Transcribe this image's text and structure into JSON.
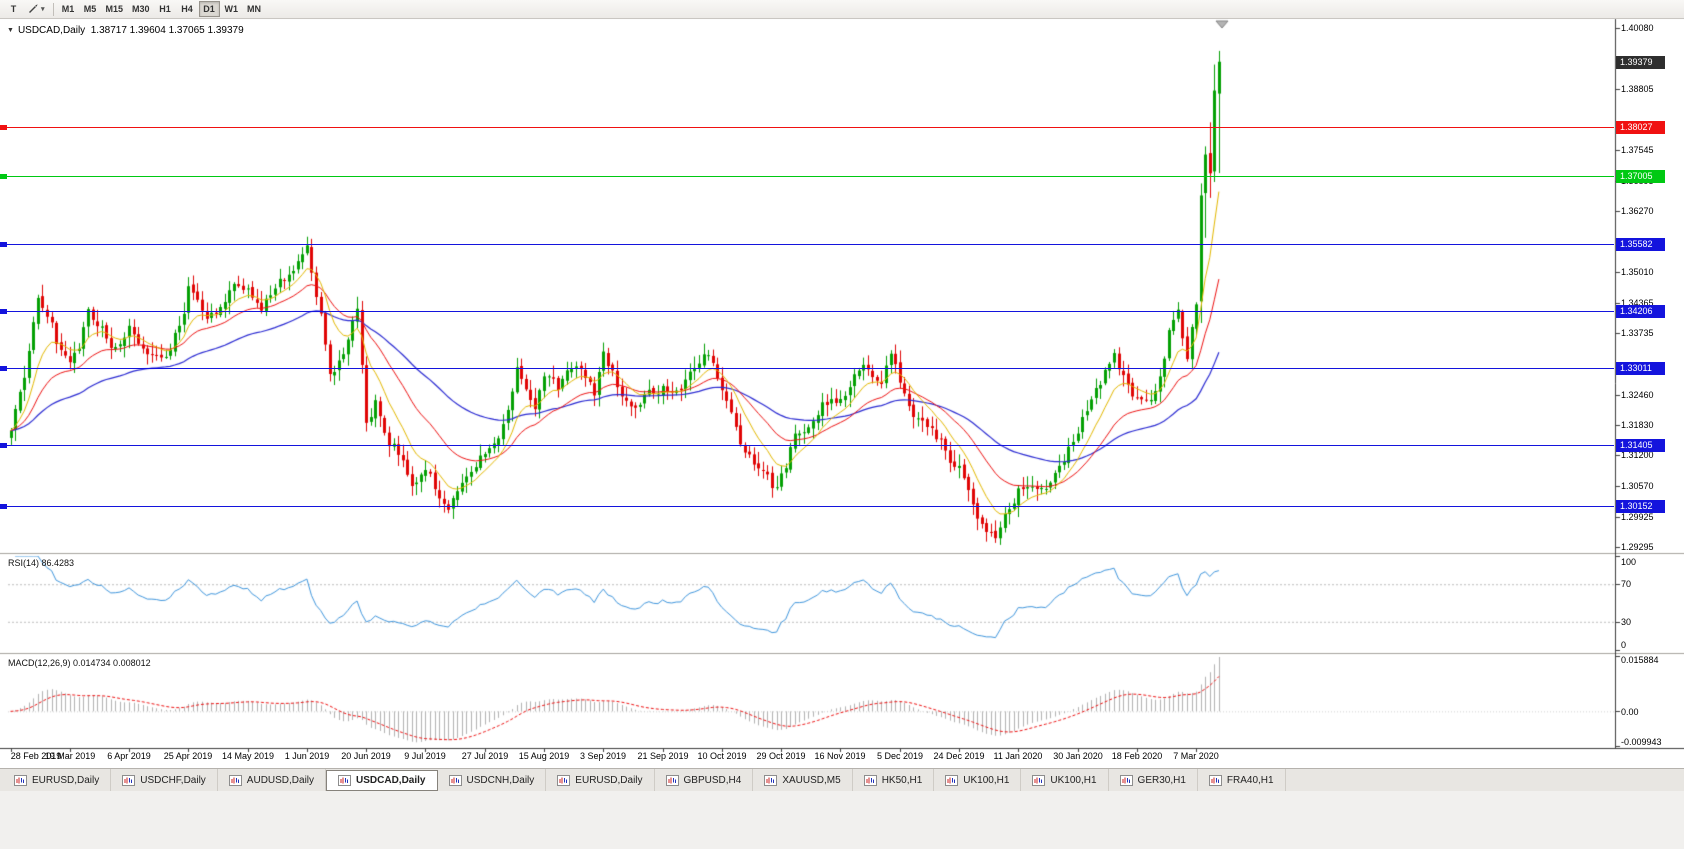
{
  "toolbar": {
    "text_tool_label": "T",
    "timeframes": [
      {
        "label": "M1",
        "active": false
      },
      {
        "label": "M5",
        "active": false
      },
      {
        "label": "M15",
        "active": false
      },
      {
        "label": "M30",
        "active": false
      },
      {
        "label": "H1",
        "active": false
      },
      {
        "label": "H4",
        "active": false
      },
      {
        "label": "D1",
        "active": true
      },
      {
        "label": "W1",
        "active": false
      },
      {
        "label": "MN",
        "active": false
      }
    ]
  },
  "chart": {
    "title": "USDCAD,Daily",
    "ohlc_text": "1.38717 1.39604 1.37065 1.39379",
    "quote": {
      "open": "1.38717",
      "high": "1.39604",
      "low": "1.37065",
      "close": "1.39379"
    },
    "current_price": {
      "label": "1.39379",
      "value": 1.39379,
      "badge_bg": "#2e2e2e"
    },
    "hlines": [
      {
        "label": "1.38027",
        "value": 1.38027,
        "color": "#f01111"
      },
      {
        "label": "1.37005",
        "value": 1.37005,
        "color": "#00c913"
      },
      {
        "label": "1.35582",
        "value": 1.35582,
        "color": "#1414dd"
      },
      {
        "label": "1.34206",
        "value": 1.34206,
        "color": "#1414dd"
      },
      {
        "label": "1.33011",
        "value": 1.33011,
        "color": "#1414dd"
      },
      {
        "label": "1.31405",
        "value": 1.31405,
        "color": "#1414dd"
      },
      {
        "label": "1.30152",
        "value": 1.30152,
        "color": "#1414dd"
      }
    ],
    "price_ticks": [
      {
        "label": "1.40080",
        "value": 1.4008
      },
      {
        "label": "1.38805",
        "value": 1.38805
      },
      {
        "label": "1.37545",
        "value": 1.37545
      },
      {
        "label": "1.36895",
        "value": 1.36895
      },
      {
        "label": "1.36270",
        "value": 1.3627
      },
      {
        "label": "1.35010",
        "value": 1.3501
      },
      {
        "label": "1.34365",
        "value": 1.34365
      },
      {
        "label": "1.33735",
        "value": 1.33735
      },
      {
        "label": "1.32460",
        "value": 1.3246
      },
      {
        "label": "1.31830",
        "value": 1.3183
      },
      {
        "label": "1.31200",
        "value": 1.312
      },
      {
        "label": "1.30570",
        "value": 1.3057
      },
      {
        "label": "1.29925",
        "value": 1.29925
      },
      {
        "label": "1.29295",
        "value": 1.29295
      }
    ],
    "date_labels": [
      "28 Feb 2019",
      "19 Mar 2019",
      "6 Apr 2019",
      "25 Apr 2019",
      "14 May 2019",
      "1 Jun 2019",
      "20 Jun 2019",
      "9 Jul 2019",
      "27 Jul 2019",
      "15 Aug 2019",
      "3 Sep 2019",
      "21 Sep 2019",
      "10 Oct 2019",
      "29 Oct 2019",
      "16 Nov 2019",
      "5 Dec 2019",
      "24 Dec 2019",
      "11 Jan 2020",
      "30 Jan 2020",
      "18 Feb 2020",
      "7 Mar 2020"
    ],
    "rsi": {
      "label": "RSI(14) 86.4283",
      "value": 86.4283,
      "axis_labels": [
        {
          "text": "100",
          "value": 100
        },
        {
          "text": "70",
          "value": 70
        },
        {
          "text": "30",
          "value": 30
        },
        {
          "text": "0",
          "value": 0
        }
      ],
      "upper_level": 70,
      "lower_level": 30,
      "line_color": "#3f96dd"
    },
    "macd": {
      "label": "MACD(12,26,9) 0.014734 0.008012",
      "main_value": 0.014734,
      "signal_value": 0.008012,
      "axis_top": "0.015884",
      "axis_zero": "0.00",
      "axis_bottom": "-0.009943",
      "histogram_color": "#b2b2b2",
      "signal_color": "#ee1111"
    },
    "chart_data": {
      "type": "candlestick",
      "symbol": "USDCAD",
      "timeframe": "Daily",
      "bars": 266,
      "y_range": [
        1.29295,
        1.4008
      ],
      "up_color": "#04a004",
      "down_color": "#e00505",
      "ma_colors": {
        "fast": "#e3b800",
        "medium": "#ee1111",
        "slow": "#2a2ad2"
      },
      "close_anchors": [
        [
          0,
          1.3168
        ],
        [
          2,
          1.326
        ],
        [
          4,
          1.3335
        ],
        [
          6,
          1.3448
        ],
        [
          8,
          1.342
        ],
        [
          10,
          1.336
        ],
        [
          13,
          1.333
        ],
        [
          15,
          1.336
        ],
        [
          17,
          1.343
        ],
        [
          20,
          1.338
        ],
        [
          23,
          1.3345
        ],
        [
          26,
          1.339
        ],
        [
          29,
          1.333
        ],
        [
          32,
          1.3315
        ],
        [
          35,
          1.335
        ],
        [
          38,
          1.341
        ],
        [
          39,
          1.348
        ],
        [
          41,
          1.344
        ],
        [
          43,
          1.3395
        ],
        [
          46,
          1.3435
        ],
        [
          49,
          1.347
        ],
        [
          52,
          1.3455
        ],
        [
          55,
          1.3435
        ],
        [
          58,
          1.347
        ],
        [
          61,
          1.35
        ],
        [
          63,
          1.353
        ],
        [
          65,
          1.355
        ],
        [
          66,
          1.349
        ],
        [
          68,
          1.341
        ],
        [
          70,
          1.329
        ],
        [
          73,
          1.3335
        ],
        [
          76,
          1.3425
        ],
        [
          78,
          1.3195
        ],
        [
          80,
          1.323
        ],
        [
          83,
          1.315
        ],
        [
          86,
          1.311
        ],
        [
          88,
          1.307
        ],
        [
          91,
          1.308
        ],
        [
          94,
          1.304
        ],
        [
          96,
          1.3025
        ],
        [
          99,
          1.3055
        ],
        [
          102,
          1.309
        ],
        [
          104,
          1.313
        ],
        [
          107,
          1.3165
        ],
        [
          109,
          1.3205
        ],
        [
          111,
          1.33
        ],
        [
          113,
          1.3255
        ],
        [
          115,
          1.323
        ],
        [
          117,
          1.329
        ],
        [
          120,
          1.3265
        ],
        [
          123,
          1.329
        ],
        [
          126,
          1.3285
        ],
        [
          128,
          1.324
        ],
        [
          130,
          1.334
        ],
        [
          132,
          1.329
        ],
        [
          134,
          1.3235
        ],
        [
          136,
          1.3215
        ],
        [
          139,
          1.325
        ],
        [
          143,
          1.326
        ],
        [
          146,
          1.324
        ],
        [
          149,
          1.3285
        ],
        [
          152,
          1.334
        ],
        [
          154,
          1.331
        ],
        [
          156,
          1.3245
        ],
        [
          159,
          1.316
        ],
        [
          162,
          1.311
        ],
        [
          165,
          1.308
        ],
        [
          168,
          1.3045
        ],
        [
          170,
          1.3095
        ],
        [
          172,
          1.316
        ],
        [
          175,
          1.3175
        ],
        [
          178,
          1.323
        ],
        [
          182,
          1.3245
        ],
        [
          185,
          1.329
        ],
        [
          188,
          1.3305
        ],
        [
          191,
          1.328
        ],
        [
          193,
          1.333
        ],
        [
          195,
          1.3275
        ],
        [
          198,
          1.319
        ],
        [
          201,
          1.3165
        ],
        [
          204,
          1.3155
        ],
        [
          206,
          1.312
        ],
        [
          208,
          1.309
        ],
        [
          210,
          1.305
        ],
        [
          212,
          1.3
        ],
        [
          214,
          1.2965
        ],
        [
          216,
          1.2958
        ],
        [
          218,
          1.299
        ],
        [
          221,
          1.3052
        ],
        [
          224,
          1.3045
        ],
        [
          227,
          1.3065
        ],
        [
          230,
          1.3105
        ],
        [
          234,
          1.317
        ],
        [
          237,
          1.323
        ],
        [
          240,
          1.3295
        ],
        [
          242,
          1.332
        ],
        [
          244,
          1.328
        ],
        [
          247,
          1.324
        ],
        [
          250,
          1.3225
        ],
        [
          252,
          1.3285
        ],
        [
          254,
          1.338
        ],
        [
          256,
          1.343
        ],
        [
          257,
          1.3375
        ],
        [
          258,
          1.333
        ],
        [
          259,
          1.3385
        ],
        [
          260,
          1.342
        ],
        [
          261,
          1.366
        ],
        [
          262,
          1.3745
        ],
        [
          263,
          1.3706
        ],
        [
          264,
          1.3878
        ],
        [
          265,
          1.39379
        ]
      ],
      "final_candles": [
        {
          "o": 1.344,
          "h": 1.3685,
          "l": 1.3395,
          "c": 1.366
        },
        {
          "o": 1.3665,
          "h": 1.3762,
          "l": 1.3572,
          "c": 1.3745
        },
        {
          "o": 1.3748,
          "h": 1.3812,
          "l": 1.3655,
          "c": 1.3706
        },
        {
          "o": 1.371,
          "h": 1.3932,
          "l": 1.3688,
          "c": 1.3878
        },
        {
          "o": 1.38717,
          "h": 1.39604,
          "l": 1.37065,
          "c": 1.39379
        }
      ]
    }
  },
  "tabs": [
    {
      "label": "EURUSD,Daily",
      "active": false
    },
    {
      "label": "USDCHF,Daily",
      "active": false
    },
    {
      "label": "AUDUSD,Daily",
      "active": false
    },
    {
      "label": "USDCAD,Daily",
      "active": true
    },
    {
      "label": "USDCNH,Daily",
      "active": false
    },
    {
      "label": "EURUSD,Daily",
      "active": false
    },
    {
      "label": "GBPUSD,H4",
      "active": false
    },
    {
      "label": "XAUUSD,M5",
      "active": false
    },
    {
      "label": "HK50,H1",
      "active": false
    },
    {
      "label": "UK100,H1",
      "active": false
    },
    {
      "label": "UK100,H1",
      "active": false
    },
    {
      "label": "GER30,H1",
      "active": false
    },
    {
      "label": "FRA40,H1",
      "active": false
    }
  ]
}
